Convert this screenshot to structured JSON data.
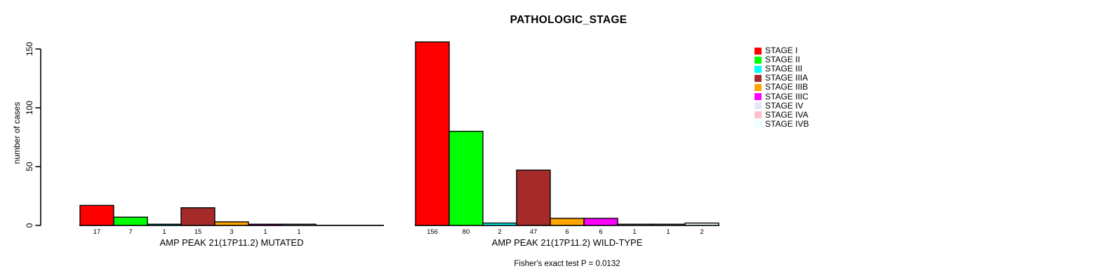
{
  "chart_data": {
    "type": "bar",
    "title": "PATHOLOGIC_STAGE",
    "ylabel": "number of cases",
    "yticks": [
      0,
      50,
      100,
      150
    ],
    "ylim": [
      0,
      156
    ],
    "grid": false,
    "legend_position": "right",
    "legend": [
      {
        "label": "STAGE I",
        "color": "#FF0000"
      },
      {
        "label": "STAGE II",
        "color": "#00FF00"
      },
      {
        "label": "STAGE III",
        "color": "#00FFFF"
      },
      {
        "label": "STAGE IIIA",
        "color": "#A52A2A"
      },
      {
        "label": "STAGE IIIB",
        "color": "#FFA500"
      },
      {
        "label": "STAGE IIIC",
        "color": "#FF00FF"
      },
      {
        "label": "STAGE IV",
        "color": "#E6E6FA"
      },
      {
        "label": "STAGE IVA",
        "color": "#FFC0CB"
      },
      {
        "label": "STAGE IVB",
        "color": "#F0FFFF"
      }
    ],
    "groups": [
      {
        "label": "AMP PEAK 21(17P11.2) MUTATED",
        "values": [
          17,
          7,
          1,
          15,
          3,
          1,
          1,
          0,
          0
        ],
        "bar_labels": [
          "17",
          "7",
          "1",
          "15",
          "3",
          "1",
          "1",
          "",
          ""
        ]
      },
      {
        "label": "AMP PEAK 21(17P11.2) WILD-TYPE",
        "values": [
          156,
          80,
          2,
          47,
          6,
          6,
          1,
          1,
          2
        ],
        "bar_labels": [
          "156",
          "80",
          "2",
          "47",
          "6",
          "6",
          "1",
          "1",
          "2"
        ]
      }
    ],
    "annotation": "Fisher's exact test P = 0.0132",
    "axis_color": "#000000",
    "background": "#FFFFFF"
  }
}
